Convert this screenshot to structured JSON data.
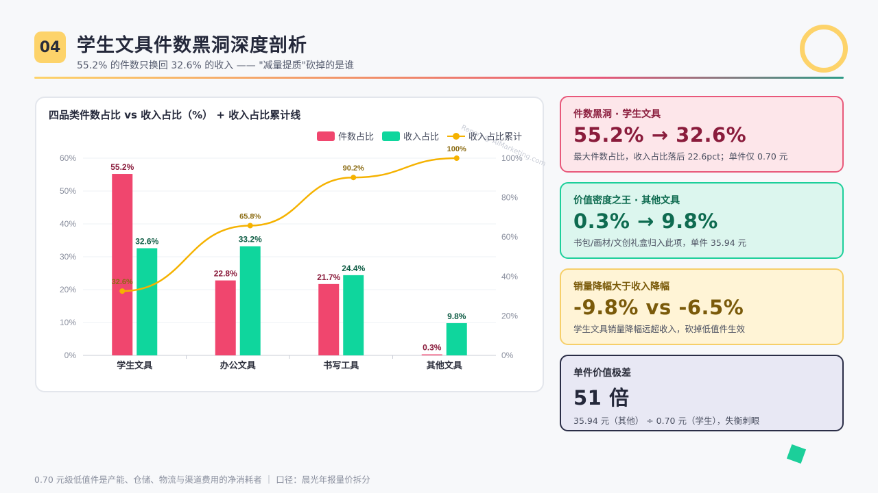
{
  "header": {
    "page_number": "04",
    "title": "学生文具件数黑洞深度剖析",
    "subtitle": "55.2% 的件数只换回 32.6% 的收入 —— \"减量提质\"砍掉的是谁"
  },
  "chart_data": {
    "type": "bar",
    "title": "四品类件数占比 vs 收入占比（%） + 收入占比累计线",
    "watermark": "Report @ AIMarketing.com",
    "categories": [
      "学生文具",
      "办公文具",
      "书写工具",
      "其他文具"
    ],
    "series": [
      {
        "name": "件数占比",
        "type": "bar",
        "axis": "left",
        "color": "#f0466e",
        "label_color": "#8a1c3c",
        "values": [
          55.2,
          22.8,
          21.7,
          0.3
        ],
        "labels": [
          "55.2%",
          "22.8%",
          "21.7%",
          "0.3%"
        ]
      },
      {
        "name": "收入占比",
        "type": "bar",
        "axis": "left",
        "color": "#0fd69d",
        "label_color": "#0e5c44",
        "values": [
          32.6,
          33.2,
          24.4,
          9.8
        ],
        "labels": [
          "32.6%",
          "33.2%",
          "24.4%",
          "9.8%"
        ]
      },
      {
        "name": "收入占比累计",
        "type": "line",
        "axis": "right",
        "color": "#f5b200",
        "label_color": "#8a6a10",
        "values": [
          32.6,
          65.8,
          90.2,
          100
        ],
        "labels": [
          "32.6%",
          "65.8%",
          "90.2%",
          "100%"
        ]
      }
    ],
    "ylim_left": [
      0,
      60
    ],
    "yticks_left": [
      "0%",
      "10%",
      "20%",
      "30%",
      "40%",
      "50%",
      "60%"
    ],
    "ylim_right": [
      0,
      100
    ],
    "yticks_right": [
      "0%",
      "20%",
      "40%",
      "60%",
      "80%",
      "100%"
    ],
    "grid": true,
    "legend": "top-right"
  },
  "cards": [
    {
      "label": "件数黑洞 · 学生文具",
      "value": "55.2% → 32.6%",
      "note": "最大件数占比，收入占比落后 22.6pct；单件仅 0.70 元"
    },
    {
      "label": "价值密度之王 · 其他文具",
      "value": "0.3% → 9.8%",
      "note": "书包/画材/文创礼盒归入此项，单件 35.94 元"
    },
    {
      "label": "销量降幅大于收入降幅",
      "value": "-9.8% vs -6.5%",
      "note": "学生文具销量降幅远超收入，砍掉低值件生效"
    },
    {
      "label": "单件价值极差",
      "value": "51 倍",
      "note": "35.94 元（其他） ÷ 0.70 元（学生），失衡刺眼"
    }
  ],
  "footer": "0.70 元级低值件是产能、仓储、物流与渠道费用的净消耗者 ｜ 口径：晨光年报量价拆分",
  "colors": {
    "accent_yellow": "#fdd36a",
    "bar_red": "#f0466e",
    "bar_green": "#0fd69d",
    "line_yellow": "#f5b200"
  }
}
